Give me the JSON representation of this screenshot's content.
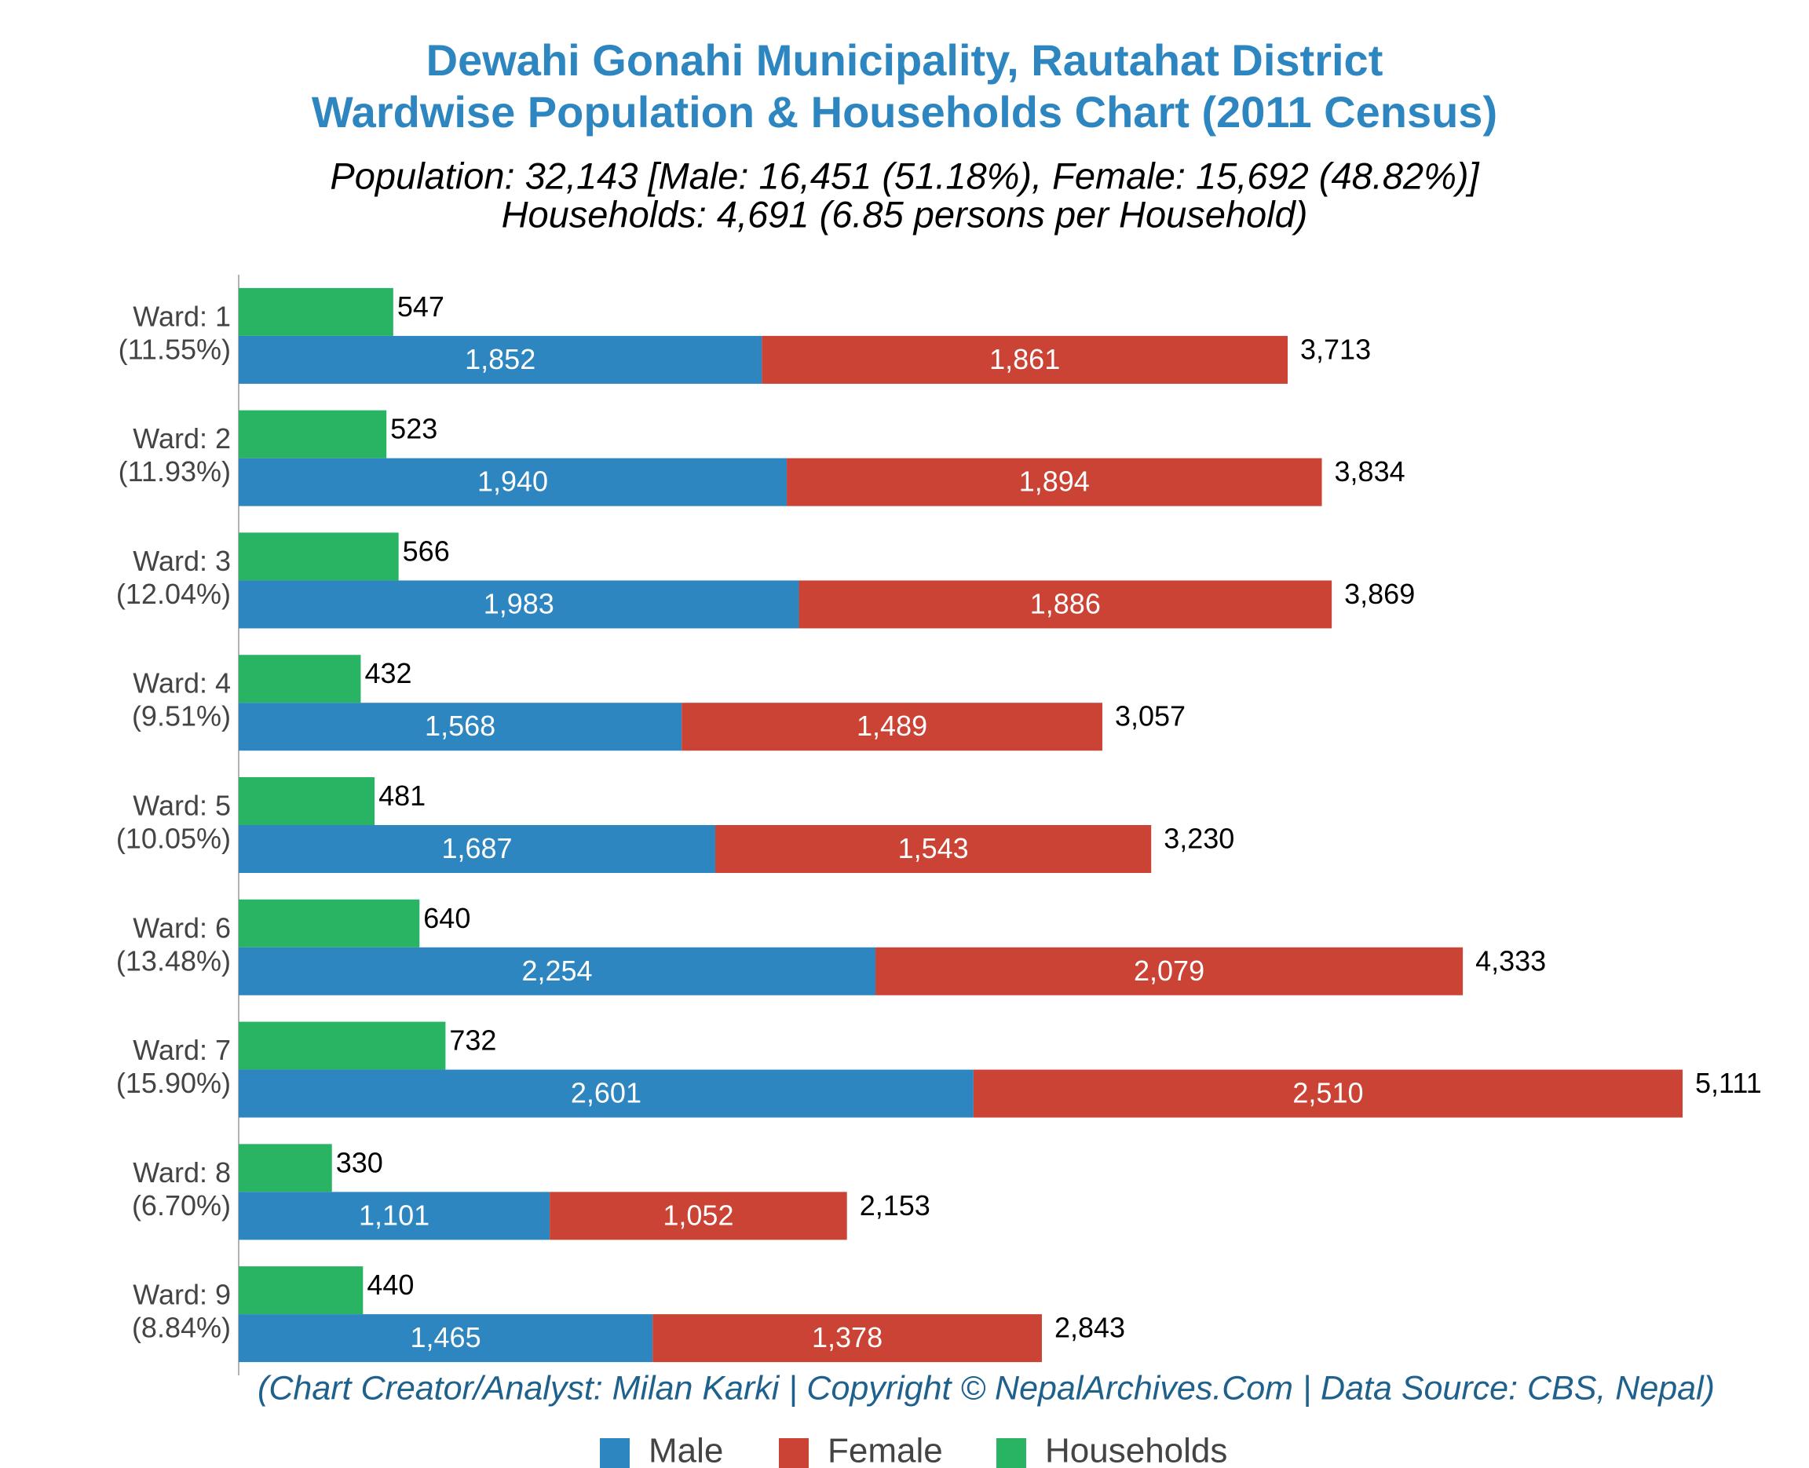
{
  "chart_data": {
    "type": "bar",
    "orientation": "horizontal",
    "title": [
      "Dewahi Gonahi Municipality, Rautahat District",
      "Wardwise Population & Households Chart (2011 Census)"
    ],
    "subtitle": [
      "Population: 32,143 [Male: 16,451 (51.18%), Female: 15,692 (48.82%)]",
      "Households: 4,691 (6.85 persons per Household)"
    ],
    "footer": "(Chart Creator/Analyst: Milan Karki | Copyright © NepalArchives.Com | Data Source: CBS, Nepal)",
    "categories": [
      "Ward: 1",
      "Ward: 2",
      "Ward: 3",
      "Ward: 4",
      "Ward: 5",
      "Ward: 6",
      "Ward: 7",
      "Ward: 8",
      "Ward: 9"
    ],
    "category_shares": [
      "(11.55%)",
      "(11.93%)",
      "(12.04%)",
      "(9.51%)",
      "(10.05%)",
      "(13.48%)",
      "(15.90%)",
      "(6.70%)",
      "(8.84%)"
    ],
    "series": [
      {
        "name": "Male",
        "color": "#2e86c1",
        "values": [
          1852,
          1940,
          1983,
          1568,
          1687,
          2254,
          2601,
          1101,
          1465
        ],
        "value_labels": [
          "1,852",
          "1,940",
          "1,983",
          "1,568",
          "1,687",
          "2,254",
          "2,601",
          "1,101",
          "1,465"
        ]
      },
      {
        "name": "Female",
        "color": "#cb4335",
        "values": [
          1861,
          1894,
          1886,
          1489,
          1543,
          2079,
          2510,
          1052,
          1378
        ],
        "value_labels": [
          "1,861",
          "1,894",
          "1,886",
          "1,489",
          "1,543",
          "2,079",
          "2,510",
          "1,052",
          "1,378"
        ]
      },
      {
        "name": "Households",
        "color": "#28b463",
        "values": [
          547,
          523,
          566,
          432,
          481,
          640,
          732,
          330,
          440
        ]
      }
    ],
    "totals": [
      3713,
      3834,
      3869,
      3057,
      3230,
      4333,
      5111,
      2153,
      2843
    ],
    "total_labels": [
      "3,713",
      "3,834",
      "3,869",
      "3,057",
      "3,230",
      "4,333",
      "5,111",
      "2,153",
      "2,843"
    ],
    "xlim": [
      0,
      5500
    ]
  }
}
